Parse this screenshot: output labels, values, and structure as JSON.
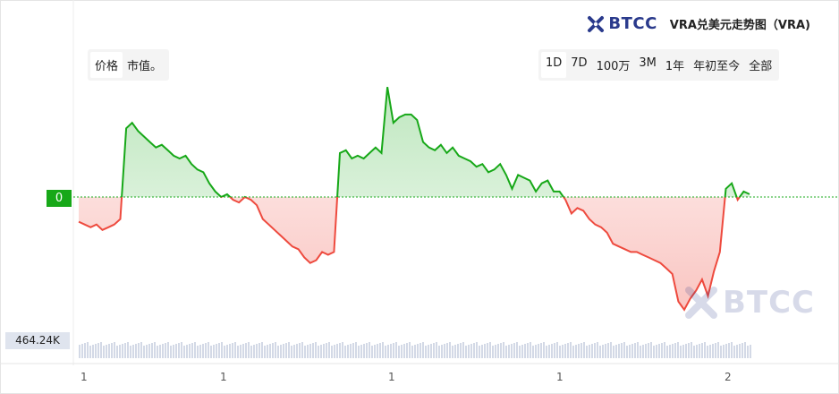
{
  "header": {
    "brand": "BTCC",
    "title": "VRA兑美元走势图（VRA)"
  },
  "metric_toggle": {
    "options": [
      "价格",
      "市值。"
    ],
    "active": "价格"
  },
  "range_toggle": {
    "options": [
      "1D",
      "7D",
      "100万",
      "3M",
      "1年",
      "年初至今",
      "全部"
    ],
    "active": "1D"
  },
  "watermark": "BTCC",
  "colors": {
    "up": "#17a818",
    "down": "#ee4a3e",
    "baseline": "#17a818",
    "brand": "#2a3a8c",
    "volume": "#d3d9e6"
  },
  "chart_data": {
    "type": "area",
    "baseline": 0,
    "baseline_label": "0",
    "volume_label": "464.24K",
    "x_tick_labels": [
      "1",
      "1",
      "1",
      "1",
      "2"
    ],
    "ylim": [
      -0.45,
      0.46
    ],
    "grid": false,
    "series": [
      {
        "values": [
          -0.09,
          -0.1,
          -0.11,
          -0.1,
          -0.12,
          -0.11,
          -0.1,
          -0.08,
          0.25,
          0.27,
          0.24,
          0.22,
          0.2,
          0.18,
          0.19,
          0.17,
          0.15,
          0.14,
          0.15,
          0.12,
          0.1,
          0.09,
          0.05,
          0.02,
          0.0,
          0.01,
          -0.01,
          -0.02,
          0.0,
          -0.01,
          -0.03,
          -0.08,
          -0.1,
          -0.12,
          -0.14,
          -0.16,
          -0.18,
          -0.19,
          -0.22,
          -0.24,
          -0.23,
          -0.2,
          -0.21,
          -0.2,
          0.16,
          0.17,
          0.14,
          0.15,
          0.14,
          0.16,
          0.18,
          0.16,
          0.4,
          0.27,
          0.29,
          0.3,
          0.3,
          0.28,
          0.2,
          0.18,
          0.17,
          0.19,
          0.16,
          0.18,
          0.15,
          0.14,
          0.13,
          0.11,
          0.12,
          0.09,
          0.1,
          0.12,
          0.08,
          0.03,
          0.08,
          0.07,
          0.06,
          0.02,
          0.05,
          0.06,
          0.02,
          0.02,
          -0.01,
          -0.06,
          -0.04,
          -0.05,
          -0.08,
          -0.1,
          -0.11,
          -0.13,
          -0.17,
          -0.18,
          -0.19,
          -0.2,
          -0.2,
          -0.21,
          -0.22,
          -0.23,
          -0.24,
          -0.26,
          -0.28,
          -0.38,
          -0.41,
          -0.37,
          -0.34,
          -0.3,
          -0.36,
          -0.27,
          -0.2,
          0.03,
          0.05,
          -0.01,
          0.02,
          0.01
        ]
      }
    ]
  }
}
